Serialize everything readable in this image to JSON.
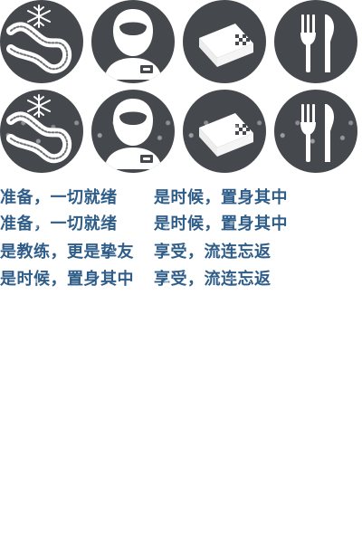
{
  "icons": {
    "row_1": [
      {
        "name": "winter-track-icon"
      },
      {
        "name": "driver-helmet-icon"
      },
      {
        "name": "finish-ticket-icon"
      },
      {
        "name": "restaurant-icon"
      }
    ],
    "row_2": [
      {
        "name": "winter-track-grunge-icon"
      },
      {
        "name": "driver-helmet-grunge-icon"
      },
      {
        "name": "finish-ticket-grunge-icon"
      },
      {
        "name": "restaurant-grunge-icon"
      }
    ],
    "colors": {
      "circle": "#45484d",
      "glyph": "#ffffff"
    }
  },
  "text": {
    "lines": [
      {
        "a": "准备，一切就绪",
        "b": "是时候，置身其中"
      },
      {
        "a": "准备，一切就绪",
        "b": "是时候，置身其中"
      },
      {
        "a": "是教练，更是挚友",
        "b": "享受，流连忘返"
      },
      {
        "a": "是时候，置身其中",
        "b": "享受，流连忘返"
      }
    ],
    "color": "#2f5d89"
  }
}
